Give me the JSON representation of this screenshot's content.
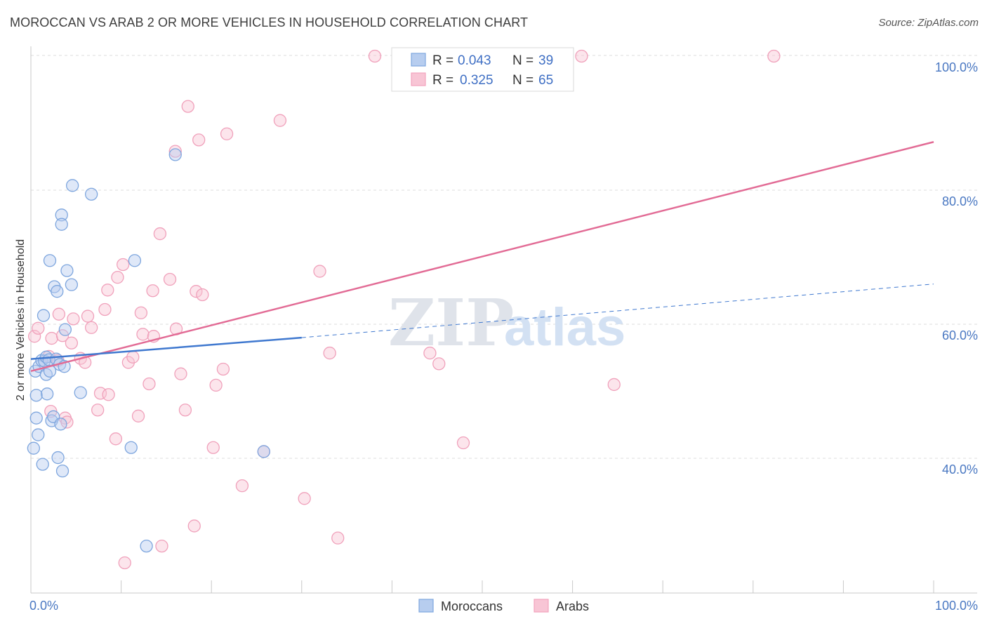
{
  "title": "MOROCCAN VS ARAB 2 OR MORE VEHICLES IN HOUSEHOLD CORRELATION CHART",
  "source": "Source: ZipAtlas.com",
  "watermark": {
    "zip": "ZIP",
    "atlas": "atlas"
  },
  "chart_data": {
    "type": "scatter",
    "title": "MOROCCAN VS ARAB 2 OR MORE VEHICLES IN HOUSEHOLD CORRELATION CHART",
    "ylabel": "2 or more Vehicles in Household",
    "xlabel": "",
    "xlim": [
      0,
      100
    ],
    "ylim": [
      18,
      102
    ],
    "x_ticks": [
      {
        "value": 0,
        "label": "0.0%"
      },
      {
        "value": 100,
        "label": "100.0%"
      }
    ],
    "y_ticks": [
      {
        "value": 40,
        "label": "40.0%"
      },
      {
        "value": 60,
        "label": "60.0%"
      },
      {
        "value": 80,
        "label": "80.0%"
      },
      {
        "value": 100,
        "label": "100.0%"
      }
    ],
    "grid": true,
    "legend_position": "top-center",
    "series": [
      {
        "name": "Moroccans",
        "color": "#7ea6de",
        "line_color": "#3f78cf",
        "R": "0.043",
        "N": "39",
        "trend": {
          "x0": 0,
          "y0": 54.8,
          "x1": 30,
          "y1": 58.0,
          "dash_x1": 100,
          "dash_y1": 66.0
        },
        "points": [
          [
            0.3,
            41.5
          ],
          [
            0.5,
            53.0
          ],
          [
            0.6,
            46.0
          ],
          [
            0.6,
            49.4
          ],
          [
            0.8,
            43.5
          ],
          [
            0.9,
            53.7
          ],
          [
            1.2,
            54.6
          ],
          [
            1.3,
            39.1
          ],
          [
            1.4,
            61.3
          ],
          [
            1.5,
            54.5
          ],
          [
            1.7,
            55.1
          ],
          [
            1.7,
            52.5
          ],
          [
            1.8,
            49.6
          ],
          [
            2.0,
            54.7
          ],
          [
            2.1,
            69.5
          ],
          [
            2.1,
            53.0
          ],
          [
            2.3,
            45.6
          ],
          [
            2.5,
            46.2
          ],
          [
            2.6,
            65.6
          ],
          [
            2.8,
            54.8
          ],
          [
            2.9,
            64.9
          ],
          [
            3.2,
            54.0
          ],
          [
            3.0,
            40.1
          ],
          [
            3.3,
            45.1
          ],
          [
            3.4,
            76.3
          ],
          [
            3.4,
            74.9
          ],
          [
            3.5,
            38.1
          ],
          [
            3.7,
            53.7
          ],
          [
            3.8,
            59.2
          ],
          [
            4.0,
            68.0
          ],
          [
            4.5,
            65.9
          ],
          [
            4.6,
            80.7
          ],
          [
            5.5,
            49.8
          ],
          [
            6.7,
            79.4
          ],
          [
            11.1,
            41.6
          ],
          [
            11.5,
            69.5
          ],
          [
            12.8,
            26.9
          ],
          [
            16.0,
            85.3
          ],
          [
            25.8,
            41.0
          ]
        ]
      },
      {
        "name": "Arabs",
        "color": "#f2a3bd",
        "line_color": "#e26b95",
        "R": "0.325",
        "N": "65",
        "trend": {
          "x0": 0,
          "y0": 53.0,
          "x1": 100,
          "y1": 87.2
        },
        "points": [
          [
            0.4,
            58.2
          ],
          [
            0.8,
            59.4
          ],
          [
            2.0,
            55.2
          ],
          [
            2.2,
            47.0
          ],
          [
            2.3,
            57.9
          ],
          [
            3.0,
            54.6
          ],
          [
            3.1,
            61.5
          ],
          [
            3.5,
            58.3
          ],
          [
            3.8,
            46.0
          ],
          [
            4.0,
            45.4
          ],
          [
            4.5,
            57.2
          ],
          [
            4.7,
            60.8
          ],
          [
            5.5,
            54.9
          ],
          [
            6.0,
            54.3
          ],
          [
            6.3,
            61.2
          ],
          [
            6.7,
            59.5
          ],
          [
            7.4,
            47.2
          ],
          [
            7.7,
            49.7
          ],
          [
            8.2,
            62.2
          ],
          [
            8.5,
            65.1
          ],
          [
            8.6,
            49.5
          ],
          [
            9.4,
            42.9
          ],
          [
            9.6,
            67.0
          ],
          [
            10.2,
            68.9
          ],
          [
            10.4,
            24.4
          ],
          [
            10.8,
            54.3
          ],
          [
            11.3,
            55.1
          ],
          [
            11.9,
            46.3
          ],
          [
            12.2,
            61.7
          ],
          [
            12.4,
            58.5
          ],
          [
            13.1,
            51.1
          ],
          [
            13.5,
            65.0
          ],
          [
            13.6,
            58.2
          ],
          [
            14.3,
            73.5
          ],
          [
            14.5,
            26.9
          ],
          [
            15.4,
            66.7
          ],
          [
            16.0,
            85.8
          ],
          [
            16.1,
            59.3
          ],
          [
            16.6,
            52.6
          ],
          [
            17.1,
            47.2
          ],
          [
            17.4,
            92.5
          ],
          [
            18.1,
            29.9
          ],
          [
            18.3,
            64.9
          ],
          [
            18.6,
            87.5
          ],
          [
            19.0,
            64.4
          ],
          [
            20.2,
            41.6
          ],
          [
            20.5,
            50.9
          ],
          [
            21.3,
            53.3
          ],
          [
            21.7,
            88.4
          ],
          [
            23.4,
            35.9
          ],
          [
            25.8,
            41.0
          ],
          [
            27.6,
            90.4
          ],
          [
            30.3,
            34.0
          ],
          [
            32.0,
            67.9
          ],
          [
            33.1,
            55.7
          ],
          [
            34.0,
            28.1
          ],
          [
            38.1,
            100.0
          ],
          [
            44.2,
            55.7
          ],
          [
            45.2,
            54.1
          ],
          [
            47.0,
            100.0
          ],
          [
            47.9,
            42.3
          ],
          [
            61.0,
            100.0
          ],
          [
            64.6,
            51.0
          ],
          [
            82.3,
            100.0
          ],
          [
            47.5,
            100.0
          ]
        ]
      }
    ]
  },
  "legend": {
    "r_label": "R =",
    "n_label": "N =",
    "moroccans_r": "0.043",
    "moroccans_n": "39",
    "arabs_r": "0.325",
    "arabs_n": "65"
  },
  "bottom_legend": {
    "moroccans": "Moroccans",
    "arabs": "Arabs"
  }
}
